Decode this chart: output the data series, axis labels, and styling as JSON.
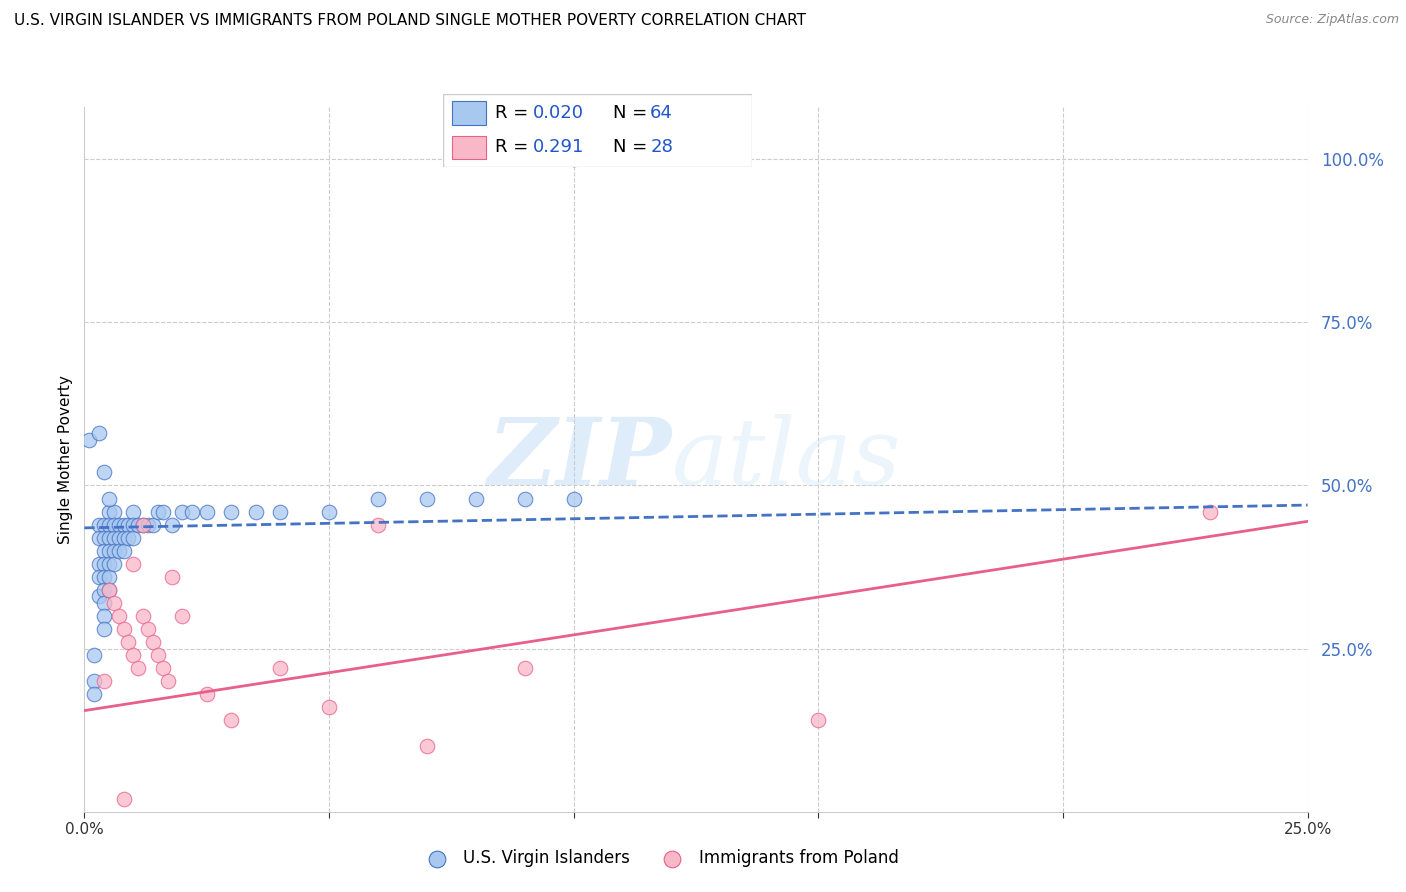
{
  "title": "U.S. VIRGIN ISLANDER VS IMMIGRANTS FROM POLAND SINGLE MOTHER POVERTY CORRELATION CHART",
  "source": "Source: ZipAtlas.com",
  "ylabel": "Single Mother Poverty",
  "xmin": 0.0,
  "xmax": 0.25,
  "ymin": 0.0,
  "ymax": 1.08,
  "xticks": [
    0.0,
    0.05,
    0.1,
    0.15,
    0.2,
    0.25
  ],
  "ytick_positions_right": [
    0.25,
    0.5,
    0.75,
    1.0
  ],
  "blue_color": "#a8c8f0",
  "blue_line_color": "#4472c4",
  "pink_color": "#f9b8c8",
  "pink_line_color": "#e8608a",
  "legend_R_blue": "0.020",
  "legend_N_blue": "64",
  "legend_R_pink": "0.291",
  "legend_N_pink": "28",
  "watermark_zip": "ZIP",
  "watermark_atlas": "atlas",
  "blue_scatter_x": [
    0.001,
    0.002,
    0.002,
    0.002,
    0.003,
    0.003,
    0.003,
    0.003,
    0.003,
    0.004,
    0.004,
    0.004,
    0.004,
    0.004,
    0.004,
    0.004,
    0.004,
    0.004,
    0.005,
    0.005,
    0.005,
    0.005,
    0.005,
    0.005,
    0.005,
    0.006,
    0.006,
    0.006,
    0.006,
    0.006,
    0.007,
    0.007,
    0.007,
    0.008,
    0.008,
    0.008,
    0.009,
    0.009,
    0.01,
    0.01,
    0.01,
    0.011,
    0.012,
    0.013,
    0.014,
    0.015,
    0.016,
    0.018,
    0.02,
    0.022,
    0.025,
    0.03,
    0.035,
    0.04,
    0.05,
    0.06,
    0.07,
    0.08,
    0.09,
    0.1,
    0.003,
    0.004,
    0.005,
    0.1
  ],
  "blue_scatter_y": [
    0.57,
    0.2,
    0.24,
    0.18,
    0.44,
    0.42,
    0.38,
    0.36,
    0.33,
    0.44,
    0.42,
    0.4,
    0.38,
    0.36,
    0.34,
    0.32,
    0.3,
    0.28,
    0.46,
    0.44,
    0.42,
    0.4,
    0.38,
    0.36,
    0.34,
    0.46,
    0.44,
    0.42,
    0.4,
    0.38,
    0.44,
    0.42,
    0.4,
    0.44,
    0.42,
    0.4,
    0.44,
    0.42,
    0.46,
    0.44,
    0.42,
    0.44,
    0.44,
    0.44,
    0.44,
    0.46,
    0.46,
    0.44,
    0.46,
    0.46,
    0.46,
    0.46,
    0.46,
    0.46,
    0.46,
    0.48,
    0.48,
    0.48,
    0.48,
    0.48,
    0.58,
    0.52,
    0.48,
    1.0
  ],
  "pink_scatter_x": [
    0.004,
    0.005,
    0.006,
    0.007,
    0.008,
    0.009,
    0.01,
    0.01,
    0.011,
    0.012,
    0.013,
    0.014,
    0.015,
    0.016,
    0.017,
    0.018,
    0.02,
    0.025,
    0.03,
    0.04,
    0.05,
    0.06,
    0.07,
    0.09,
    0.15,
    0.23,
    0.008,
    0.012
  ],
  "pink_scatter_y": [
    0.2,
    0.34,
    0.32,
    0.3,
    0.28,
    0.26,
    0.38,
    0.24,
    0.22,
    0.3,
    0.28,
    0.26,
    0.24,
    0.22,
    0.2,
    0.36,
    0.3,
    0.18,
    0.14,
    0.22,
    0.16,
    0.44,
    0.1,
    0.22,
    0.14,
    0.46,
    0.02,
    0.44
  ],
  "blue_trend_x": [
    0.0,
    0.25
  ],
  "blue_trend_y": [
    0.435,
    0.47
  ],
  "pink_trend_x": [
    0.0,
    0.25
  ],
  "pink_trend_y": [
    0.155,
    0.445
  ]
}
